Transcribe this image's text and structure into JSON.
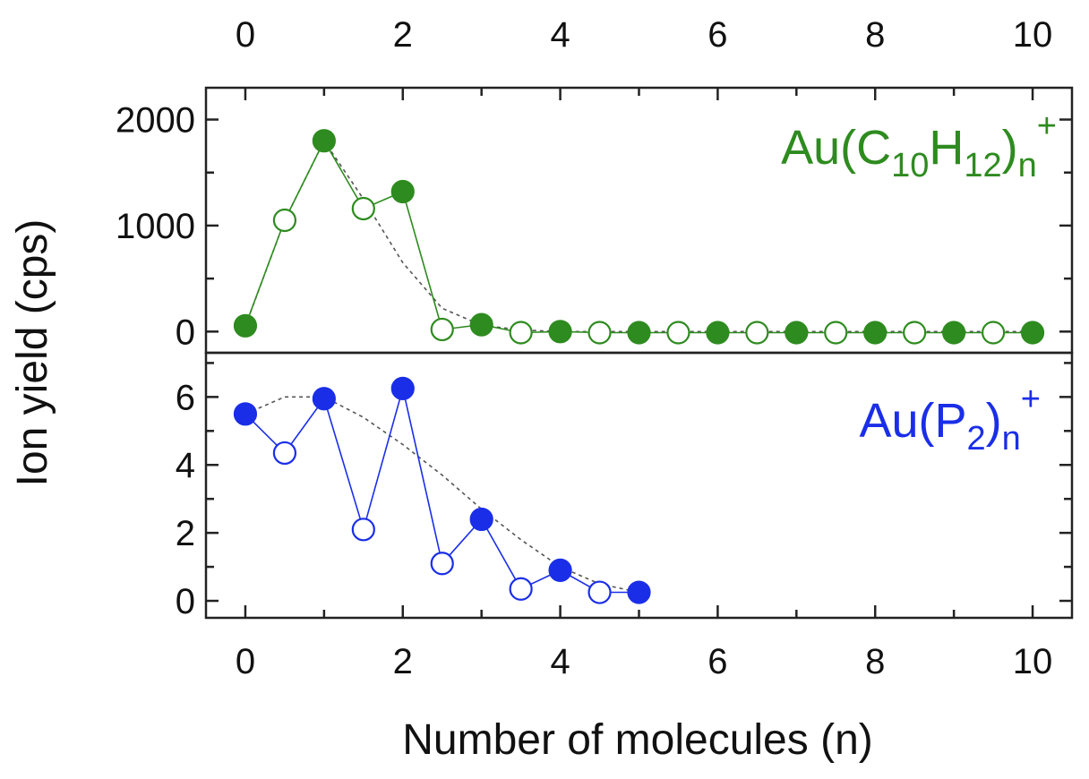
{
  "chart_data": {
    "type": "scatter",
    "xlabel": "Number of molecules (n)",
    "ylabel": "Ion yield (cps)",
    "xlim": [
      -0.5,
      10.5
    ],
    "xticks": [
      "0",
      "2",
      "4",
      "6",
      "8",
      "10"
    ],
    "top_xticks": [
      "0",
      "2",
      "4",
      "6",
      "8",
      "10"
    ],
    "grid": false,
    "panels": [
      {
        "label": {
          "base": "Au(C",
          "sub1": "10",
          "mid": "H",
          "sub2": "12",
          "close": ")",
          "sub3": "n",
          "sup": "+"
        },
        "color": "#2e8b1f",
        "ylim": [
          -200,
          2300
        ],
        "yticks": [
          "0",
          "1000",
          "2000"
        ],
        "series": [
          {
            "name": "integer n",
            "marker": "filled",
            "x": [
              0,
              1,
              2,
              3,
              4,
              5,
              6,
              7,
              8,
              9,
              10
            ],
            "y": [
              55,
              1800,
              1320,
              65,
              0,
              -10,
              -10,
              -10,
              -10,
              -10,
              -10
            ]
          },
          {
            "name": "half-integer n",
            "marker": "open",
            "x": [
              0.5,
              1.5,
              2.5,
              3.5,
              4.5,
              5.5,
              6.5,
              7.5,
              8.5,
              9.5
            ],
            "y": [
              1050,
              1160,
              20,
              -10,
              -10,
              -10,
              -10,
              -10,
              -10,
              -10
            ]
          }
        ],
        "trend": {
          "x": [
            0,
            0.5,
            1,
            1.5,
            2,
            2.5,
            3,
            3.5,
            4,
            10
          ],
          "y": [
            50,
            1050,
            1800,
            1250,
            650,
            220,
            60,
            15,
            0,
            0
          ]
        }
      },
      {
        "label": {
          "base": "Au(P",
          "sub1": "2",
          "close": ")",
          "sub3": "n",
          "sup": "+"
        },
        "color": "#1a2ee8",
        "ylim": [
          -0.5,
          7.3
        ],
        "yticks": [
          "0",
          "2",
          "4",
          "6"
        ],
        "series": [
          {
            "name": "integer n",
            "marker": "filled",
            "x": [
              0,
              1,
              2,
              3,
              4,
              5
            ],
            "y": [
              5.5,
              5.95,
              6.25,
              2.4,
              0.9,
              0.25
            ]
          },
          {
            "name": "half-integer n",
            "marker": "open",
            "x": [
              0.5,
              1.5,
              2.5,
              3.5,
              4.5
            ],
            "y": [
              4.35,
              2.1,
              1.1,
              0.35,
              0.25
            ]
          }
        ],
        "trend": {
          "x": [
            0,
            0.5,
            1,
            1.5,
            2,
            2.5,
            3,
            3.5,
            4,
            4.5,
            5
          ],
          "y": [
            5.5,
            6.0,
            6.0,
            5.4,
            4.6,
            3.7,
            2.7,
            1.8,
            1.0,
            0.5,
            0.25
          ]
        }
      }
    ]
  }
}
